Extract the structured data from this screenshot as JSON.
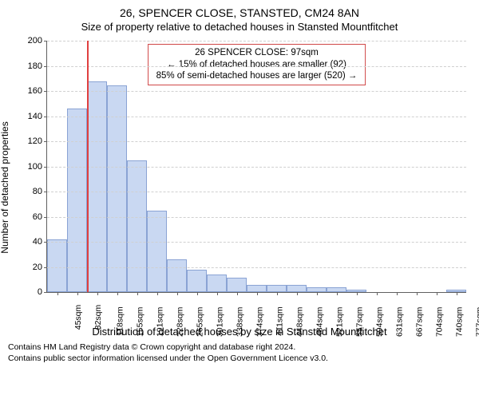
{
  "title": "26, SPENCER CLOSE, STANSTED, CM24 8AN",
  "subtitle": "Size of property relative to detached houses in Stansted Mountfitchet",
  "chart": {
    "type": "histogram",
    "ylabel": "Number of detached properties",
    "xlabel": "Distribution of detached houses by size in Stansted Mountfitchet",
    "background_color": "#ffffff",
    "grid_color": "#d0d0d0",
    "axis_color": "#606060",
    "bar_fill": "#c9d8f2",
    "bar_border": "#8aa3d4",
    "marker_line_color": "#e04040",
    "ylim": [
      0,
      200
    ],
    "ytick_step": 20,
    "bar_width": 0.98,
    "categories": [
      "45sqm",
      "82sqm",
      "118sqm",
      "155sqm",
      "191sqm",
      "228sqm",
      "265sqm",
      "301sqm",
      "338sqm",
      "374sqm",
      "411sqm",
      "448sqm",
      "484sqm",
      "521sqm",
      "557sqm",
      "594sqm",
      "631sqm",
      "667sqm",
      "704sqm",
      "740sqm",
      "777sqm"
    ],
    "values": [
      42,
      146,
      168,
      165,
      105,
      65,
      26,
      18,
      14,
      12,
      6,
      6,
      6,
      4,
      4,
      2,
      0,
      0,
      0,
      0,
      2
    ],
    "marker_between": [
      1,
      2
    ]
  },
  "annotation": {
    "border_color": "#d04848",
    "line1": "26 SPENCER CLOSE: 97sqm",
    "line2": "← 15% of detached houses are smaller (92)",
    "line3": "85% of semi-detached houses are larger (520) →"
  },
  "footer": {
    "line1": "Contains HM Land Registry data © Crown copyright and database right 2024.",
    "line2": "Contains public sector information licensed under the Open Government Licence v3.0."
  }
}
